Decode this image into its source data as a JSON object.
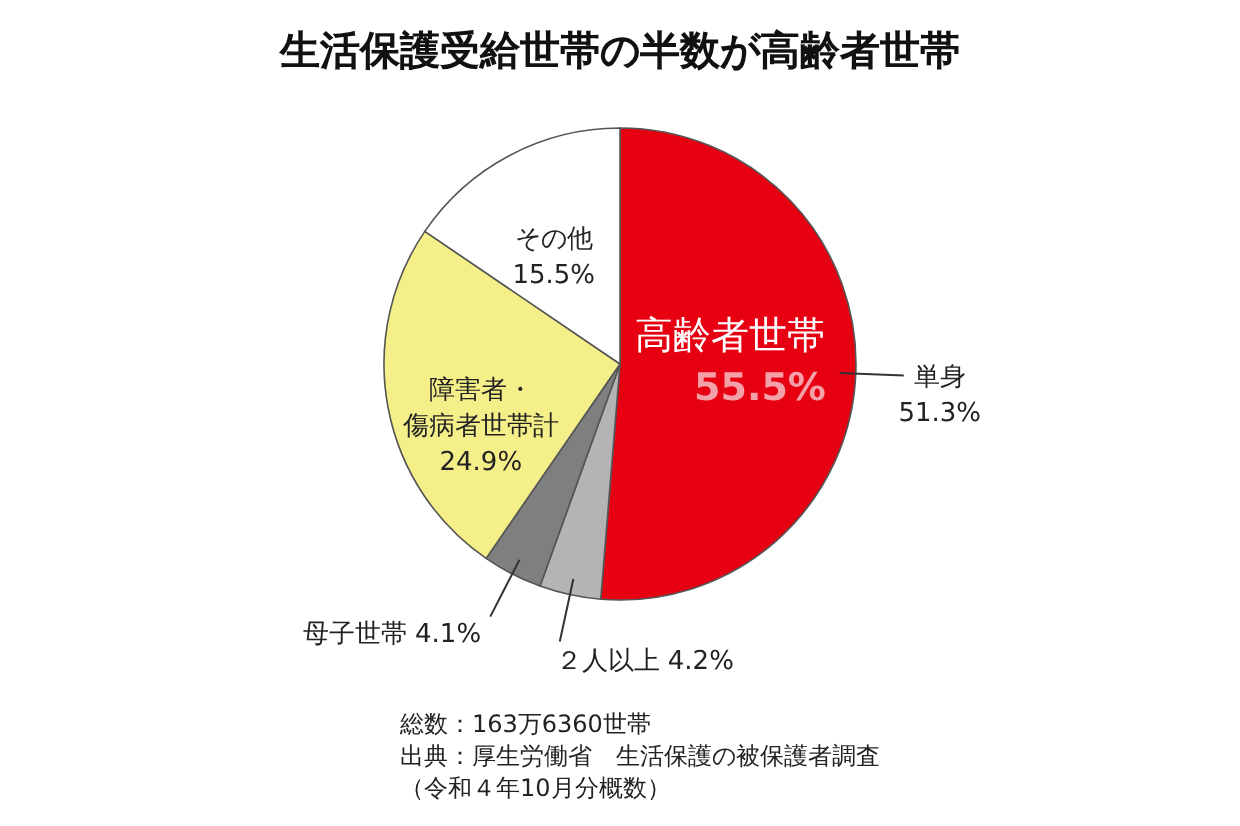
{
  "chart_data": {
    "type": "pie",
    "title": "生活保護受給世帯の半数が高齢者世帯",
    "categories": [
      "単身",
      "２人以上",
      "母子世帯",
      "障害者・傷病者世帯計",
      "その他"
    ],
    "values": [
      51.3,
      4.2,
      4.1,
      24.9,
      15.5
    ],
    "value_labels": [
      "51.3%",
      "4.2%",
      "4.1%",
      "24.9%",
      "15.5%"
    ],
    "colors": [
      "#e60012",
      "#b4b4b4",
      "#7f7f7f",
      "#f5ef8a",
      "#ffffff"
    ],
    "annotations": [
      "高齢者世帯",
      "55.5%",
      "総数：163万6360世帯",
      "出典：厚生労働省　生活保護の被保護者調査",
      "（令和４年10月分概数）"
    ]
  }
}
